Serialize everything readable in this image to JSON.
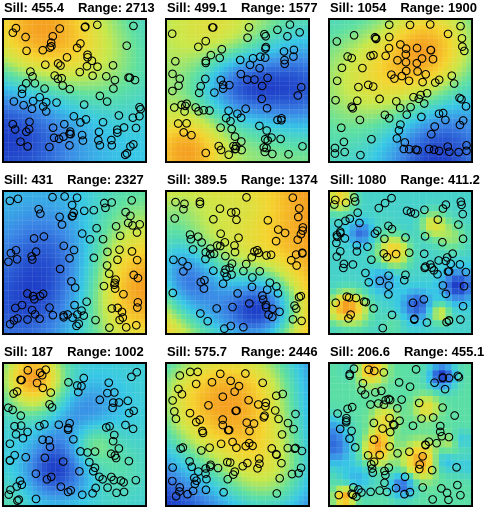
{
  "chart_data": {
    "type": "heatmap",
    "layout": {
      "rows": 3,
      "cols": 3
    },
    "point_marker": "open-circle",
    "colormap": [
      "#1e3fc8",
      "#3a86e6",
      "#37c8e6",
      "#5ee0a0",
      "#c8e84a",
      "#f5d42e",
      "#f5a020"
    ],
    "panels": [
      {
        "sill_label": "Sill: 455.4",
        "range_label": "Range: 2713",
        "sill": 455.4,
        "range": 2713
      },
      {
        "sill_label": "Sill: 499.1",
        "range_label": "Range: 1577",
        "sill": 499.1,
        "range": 1577
      },
      {
        "sill_label": "Sill: 1054",
        "range_label": "Range: 1900",
        "sill": 1054,
        "range": 1900
      },
      {
        "sill_label": "Sill: 431",
        "range_label": "Range: 2327",
        "sill": 431,
        "range": 2327
      },
      {
        "sill_label": "Sill: 389.5",
        "range_label": "Range: 1374",
        "sill": 389.5,
        "range": 1374
      },
      {
        "sill_label": "Sill: 1080",
        "range_label": "Range: 411.2",
        "sill": 1080,
        "range": 411.2
      },
      {
        "sill_label": "Sill: 187",
        "range_label": "Range: 1002",
        "sill": 187,
        "range": 1002
      },
      {
        "sill_label": "Sill: 575.7",
        "range_label": "Range: 2446",
        "sill": 575.7,
        "range": 2446
      },
      {
        "sill_label": "Sill: 206.6",
        "range_label": "Range: 455.1",
        "sill": 206.6,
        "range": 455.1
      }
    ]
  }
}
